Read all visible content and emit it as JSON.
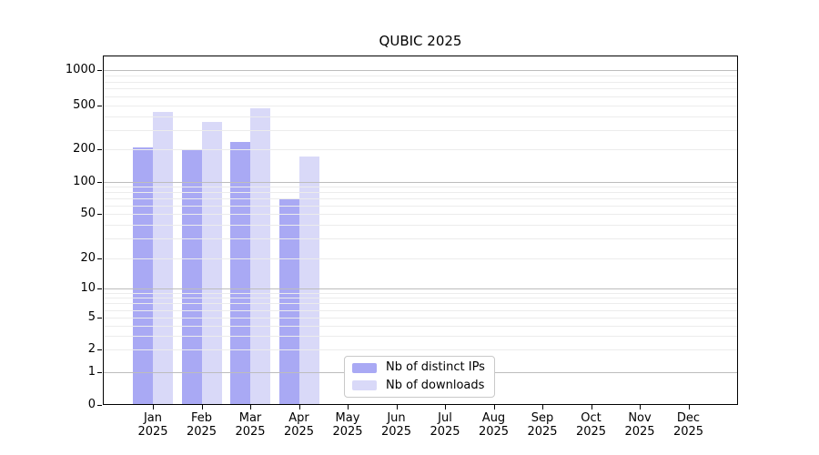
{
  "figure": {
    "background": "#ffffff"
  },
  "chart_data": {
    "type": "bar",
    "title": "QUBIC 2025",
    "x_months": [
      "Jan",
      "Feb",
      "Mar",
      "Apr",
      "May",
      "Jun",
      "Jul",
      "Aug",
      "Sep",
      "Oct",
      "Nov",
      "Dec"
    ],
    "x_year": "2025",
    "series": [
      {
        "name": "Nb of distinct IPs",
        "color": "#a9a9f4",
        "values": [
          208,
          200,
          232,
          70,
          null,
          null,
          null,
          null,
          null,
          null,
          null,
          null
        ]
      },
      {
        "name": "Nb of downloads",
        "color": "#d9d9f8",
        "values": [
          434,
          352,
          468,
          170,
          null,
          null,
          null,
          null,
          null,
          null,
          null,
          null
        ]
      }
    ],
    "y_axis": {
      "scale": "symlog",
      "tick_labels": [
        "0",
        "1",
        "2",
        "5",
        "10",
        "20",
        "50",
        "100",
        "200",
        "500",
        "1000"
      ],
      "ticks": [
        0,
        1,
        2,
        5,
        10,
        20,
        50,
        100,
        200,
        500,
        1000
      ],
      "top_value": 1350
    },
    "grid": true,
    "legend_position": "lower-center",
    "colors": {
      "major_gridline": "#bdbdbd",
      "minor_gridline": "#ececec",
      "spine": "#000000"
    }
  }
}
